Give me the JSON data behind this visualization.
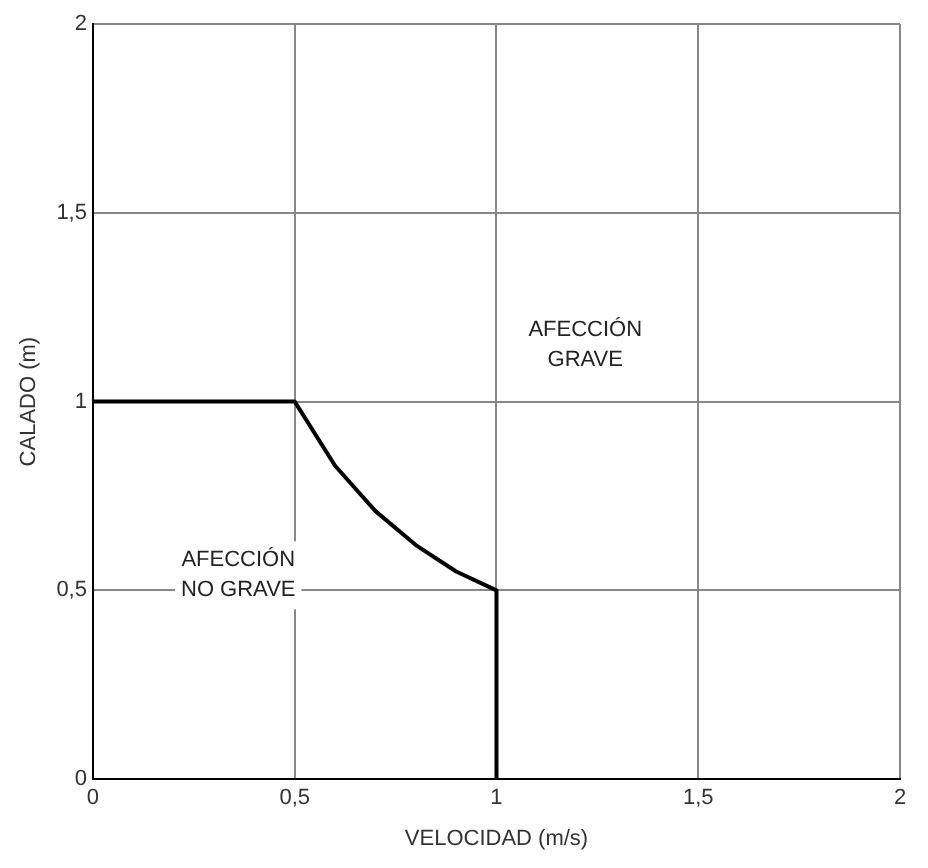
{
  "chart_data": {
    "type": "line",
    "xlabel": "VELOCIDAD (m/s)",
    "ylabel": "CALADO (m)",
    "x": [
      0,
      0.5,
      0.6,
      0.7,
      0.8,
      0.9,
      1,
      1
    ],
    "series": [
      {
        "color": "#000000",
        "values": [
          1,
          1,
          0.83,
          0.71,
          0.62,
          0.55,
          0.5,
          0
        ]
      }
    ],
    "xlim": [
      0,
      2
    ],
    "ylim": [
      0,
      2
    ],
    "xticks": [
      0,
      {
        "value": 0.5,
        "label": "0,5"
      },
      1,
      {
        "value": 1.5,
        "label": "1,5"
      },
      2
    ],
    "yticks": [
      0,
      {
        "value": 0.5,
        "label": "0,5"
      },
      1,
      {
        "value": 1.5,
        "label": "1,5"
      },
      2
    ],
    "grid": true,
    "legend": false,
    "marker": "none",
    "line_style": "solid",
    "annotations": [
      "AFECCIÓN GRAVE",
      "AFECCIÓN NO GRAVE"
    ]
  }
}
